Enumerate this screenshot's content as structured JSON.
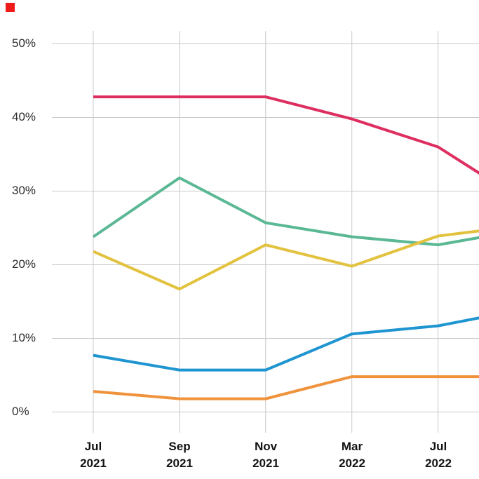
{
  "marker": {
    "color": "#ee1b1b"
  },
  "chart_data": {
    "type": "line",
    "title": "",
    "categories": [
      "Jul 2021",
      "Sep 2021",
      "Nov 2021",
      "Mar 2022",
      "Jul 2022"
    ],
    "x_tick_lines": [
      [
        "Jul",
        "2021"
      ],
      [
        "Sep",
        "2021"
      ],
      [
        "Nov",
        "2021"
      ],
      [
        "Mar",
        "2022"
      ],
      [
        "Jul",
        "2022"
      ]
    ],
    "y_tick_labels": [
      "50%",
      "40%",
      "30%",
      "20%",
      "10%",
      "0%"
    ],
    "y_tick_values": [
      50,
      40,
      30,
      20,
      10,
      0
    ],
    "ylim": [
      0,
      52
    ],
    "grid": true,
    "legend_position": "none",
    "grid_color": "#c9c9c9",
    "axis_text_color": "#141414",
    "series": [
      {
        "name": "crimson",
        "color": "#de2e60",
        "values": [
          42.8,
          42.8,
          42.8,
          39.8,
          36.0
        ],
        "edge_value": 32.4
      },
      {
        "name": "green",
        "color": "#5ab894",
        "values": [
          23.8,
          31.8,
          25.7,
          23.8,
          22.7
        ],
        "edge_value": 23.7
      },
      {
        "name": "yellow",
        "color": "#e2c23f",
        "values": [
          21.8,
          16.7,
          22.7,
          19.8,
          23.9
        ],
        "edge_value": 24.6
      },
      {
        "name": "blue",
        "color": "#1e95d0",
        "values": [
          7.7,
          5.7,
          5.7,
          10.6,
          11.7
        ],
        "edge_value": 12.8
      },
      {
        "name": "orange",
        "color": "#f0923b",
        "values": [
          2.8,
          1.8,
          1.8,
          4.8,
          4.8
        ],
        "edge_value": 4.8
      }
    ]
  }
}
